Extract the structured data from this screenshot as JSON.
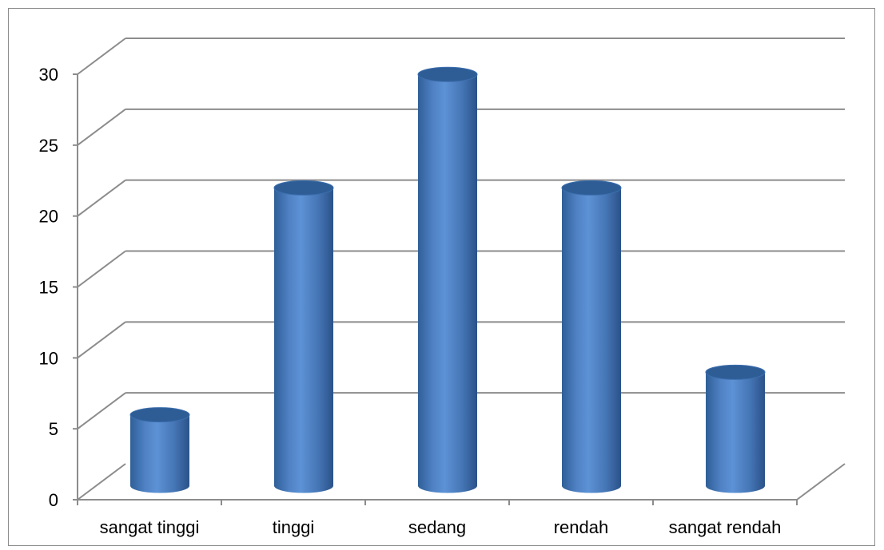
{
  "chart_data": {
    "type": "bar",
    "style": "3d-cylinder",
    "categories": [
      "sangat tinggi",
      "tinggi",
      "sedang",
      "rendah",
      "sangat rendah"
    ],
    "values": [
      5,
      21,
      29,
      21,
      8
    ],
    "yticks": [
      0,
      5,
      10,
      15,
      20,
      25,
      30
    ],
    "ylim": [
      0,
      30
    ],
    "title": "",
    "xlabel": "",
    "ylabel": "",
    "grid": true,
    "legend": "none",
    "colors": {
      "bar": "#4f81bd",
      "bar_dark": "#2c5c94",
      "bar_light": "#7aa7dc",
      "grid": "#8c8c8c"
    }
  }
}
